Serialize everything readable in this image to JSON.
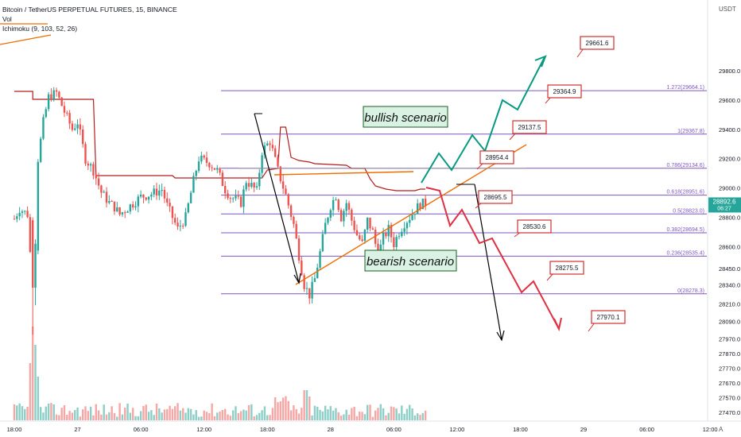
{
  "header": {
    "title": "Bitcoin / TetherUS PERPETUAL FUTURES, 15, BINANCE",
    "vol_label": "Vol",
    "indicator_label": "Ichimoku (9, 103, 52, 26)"
  },
  "colors": {
    "up": "#26a69a",
    "down": "#ef5350",
    "vol_up": "#8ccfc6",
    "vol_down": "#f6a6a4",
    "fib": "#7e57c2",
    "ichimoku": "#b71c1c",
    "trend": "#ef6c00",
    "bull_path": "#089981",
    "bear_path": "#e03043",
    "arrow": "#000000",
    "callout_border": "#d32f2f",
    "current_price_bg": "#26a69a",
    "scenario_bg": "#d9f2e4"
  },
  "chart_data": {
    "type": "candlestick",
    "title": "Bitcoin / TetherUS PERPETUAL FUTURES, 15, BINANCE",
    "y_unit": "USDT",
    "ylim": [
      27410,
      30120
    ],
    "y_ticks": [
      "29800.0",
      "29600.0",
      "29400.0",
      "29200.0",
      "29000.0",
      "28800.0",
      "28600.0",
      "28450.0",
      "28340.0",
      "28210.0",
      "28090.0",
      "27970.0",
      "27870.0",
      "27770.0",
      "27670.0",
      "27570.0",
      "27470.0"
    ],
    "y_tick_values": [
      29800,
      29600,
      29400,
      29200,
      29000,
      28800,
      28600,
      28450,
      28340,
      28210,
      28090,
      27970,
      27870,
      27770,
      27670,
      27570,
      27470
    ],
    "x_ticks": [
      "18:00",
      "27",
      "06:00",
      "12:00",
      "18:00",
      "28",
      "06:00",
      "12:00",
      "18:00",
      "29",
      "06:00",
      "12:00",
      "18:"
    ],
    "x_tick_bars": [
      0,
      24,
      48,
      72,
      96,
      120,
      144,
      168,
      192,
      216,
      240,
      264,
      288
    ],
    "current_price": "28892.6",
    "countdown": "06:27",
    "fib_levels": [
      {
        "label": "1.272(29664.1)",
        "value": 29664.1
      },
      {
        "label": "1(29367.8)",
        "value": 29367.8
      },
      {
        "label": "0.786(29134.6)",
        "value": 29134.6
      },
      {
        "label": "0.618(28951.6)",
        "value": 28951.6
      },
      {
        "label": "0.5(28823.0)",
        "value": 28823.0
      },
      {
        "label": "0.382(28694.5)",
        "value": 28694.5
      },
      {
        "label": "0.236(28535.4)",
        "value": 28535.4
      },
      {
        "label": "0(28278.3)",
        "value": 28278.3
      }
    ],
    "callouts": [
      {
        "label": "29661.6",
        "value": 29661.6
      },
      {
        "label": "29364.9",
        "value": 29364.9
      },
      {
        "label": "29137.5",
        "value": 29137.5
      },
      {
        "label": "28954.4",
        "value": 28954.4
      },
      {
        "label": "28695.5",
        "value": 28695.5
      },
      {
        "label": "28530.6",
        "value": 28530.6
      },
      {
        "label": "28275.5",
        "value": 28275.5
      },
      {
        "label": "27970.1",
        "value": 27970.1
      }
    ],
    "annotations": [
      "bullish scenario",
      "bearish scenario"
    ],
    "bottom_right_label": "A"
  }
}
